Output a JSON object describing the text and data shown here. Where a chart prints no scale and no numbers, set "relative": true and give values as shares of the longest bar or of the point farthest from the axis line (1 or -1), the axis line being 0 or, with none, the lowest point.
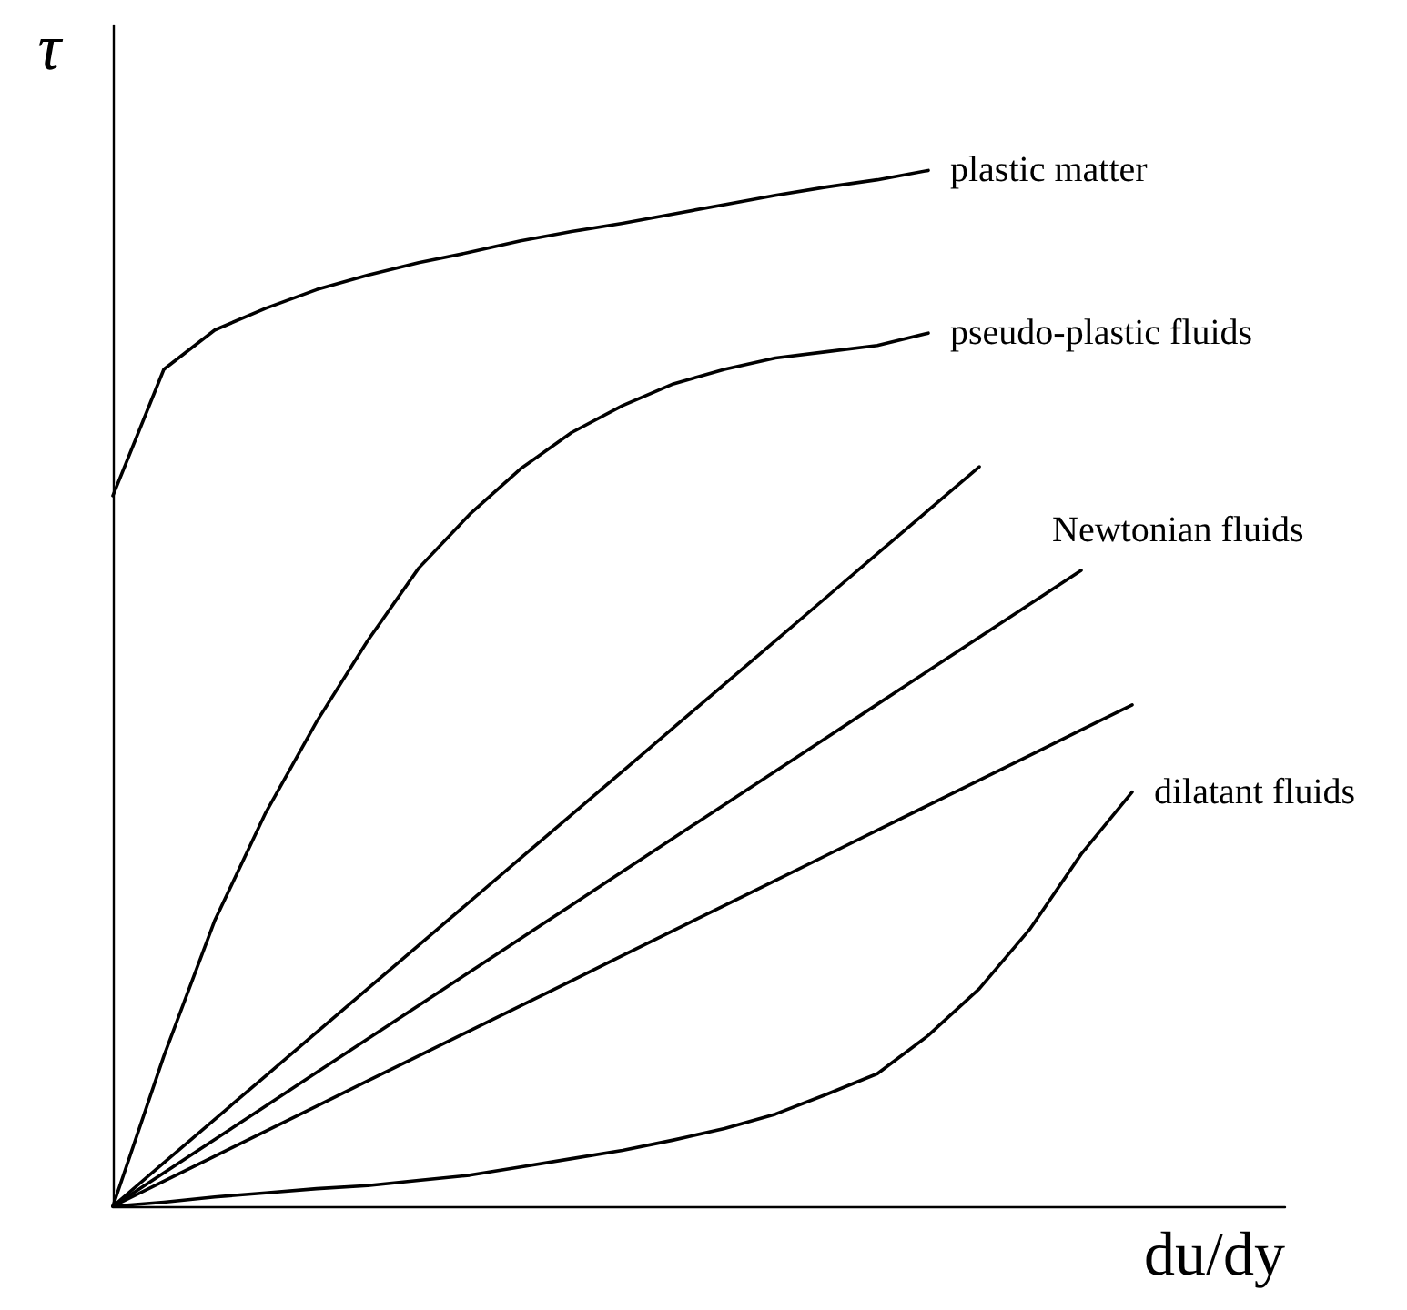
{
  "chart_data": {
    "type": "line",
    "relative": true,
    "xlabel": "du/dy",
    "ylabel": "τ",
    "legend": false,
    "grid": false,
    "marker": "none",
    "line_style": "solid",
    "categories": [
      null,
      null,
      null,
      null,
      null,
      null,
      null,
      null,
      null,
      null,
      null,
      null,
      null,
      null,
      null,
      null,
      null,
      null,
      null,
      null,
      null,
      null,
      null,
      null
    ],
    "series": [
      {
        "name": "plastic matter",
        "color": "#000000",
        "values": [
          0.686,
          0.808,
          0.846,
          0.867,
          0.885,
          0.899,
          0.911,
          0.921,
          0.932,
          0.941,
          0.949,
          0.958,
          0.967,
          0.976,
          0.984,
          0.991,
          1,
          null,
          null,
          null,
          null,
          null,
          null,
          null
        ]
      },
      {
        "name": "pseudo-plastic fluids",
        "color": "#000000",
        "values": [
          0,
          0.145,
          0.276,
          0.38,
          0.468,
          0.546,
          0.616,
          0.668,
          0.712,
          0.747,
          0.773,
          0.794,
          0.808,
          0.819,
          0.825,
          0.831,
          0.843,
          null,
          null,
          null,
          null,
          null,
          null,
          null
        ]
      },
      {
        "color": "#000000",
        "values": [
          0,
          0.042,
          0.084,
          0.126,
          0.168,
          0.21,
          0.252,
          0.294,
          0.336,
          0.378,
          0.42,
          0.462,
          0.504,
          0.546,
          0.588,
          0.63,
          0.672,
          0.714,
          null,
          null,
          null,
          null,
          null,
          null
        ]
      },
      {
        "name": "Newtonian fluids",
        "color": "#000000",
        "values": [
          0,
          0.0323,
          0.0646,
          0.0969,
          0.1293,
          0.1616,
          0.1939,
          0.2262,
          0.2585,
          0.2908,
          0.3232,
          0.3555,
          0.3878,
          0.4201,
          0.4524,
          0.4847,
          0.5171,
          0.5494,
          0.5817,
          0.614,
          null,
          null,
          null,
          null
        ]
      },
      {
        "color": "#000000",
        "values": [
          0,
          0.0242,
          0.0484,
          0.0726,
          0.0968,
          0.121,
          0.1452,
          0.1694,
          0.1936,
          0.2178,
          0.242,
          0.2662,
          0.2904,
          0.3146,
          0.3388,
          0.363,
          0.3872,
          0.4114,
          0.4356,
          0.4598,
          0.484,
          null,
          null,
          null
        ]
      },
      {
        "name": "dilatant fluids",
        "color": "#000000",
        "values": [
          0,
          0.004,
          0.009,
          0.013,
          0.017,
          0.02,
          0.025,
          0.03,
          0.038,
          0.046,
          0.054,
          0.064,
          0.075,
          0.089,
          0.108,
          0.128,
          0.165,
          0.21,
          0.268,
          0.34,
          0.4,
          null,
          null,
          null
        ]
      }
    ]
  }
}
